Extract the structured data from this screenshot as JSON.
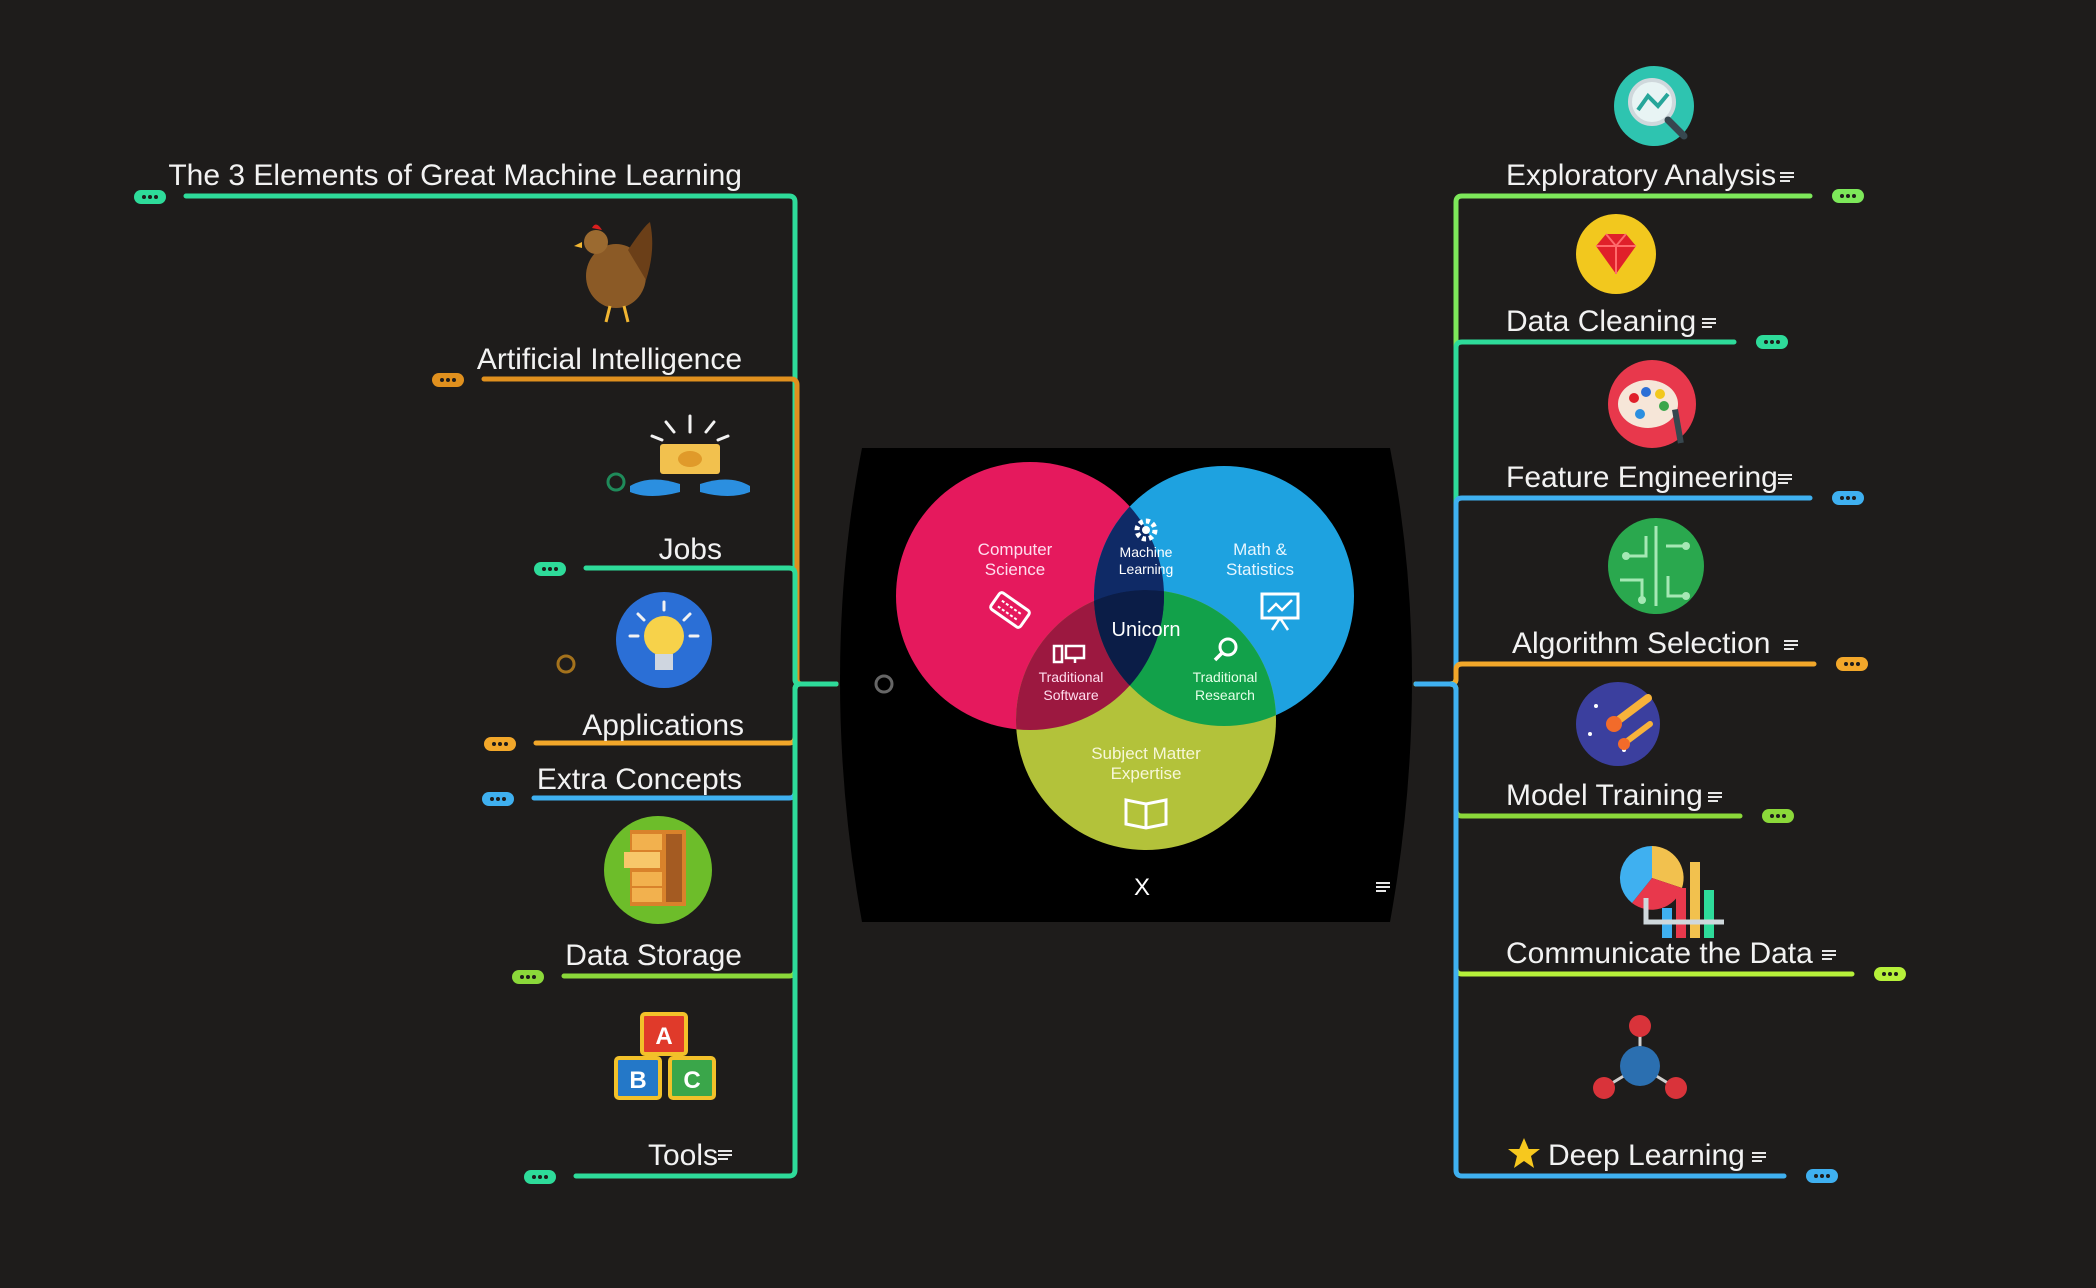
{
  "map": {
    "left_topics": [
      {
        "label": "The 3 Elements of Great Machine Learning",
        "color": "#2edb9a",
        "icon": "none"
      },
      {
        "label": "Artificial Intelligence",
        "color": "#e0901e",
        "icon": "chicken-icon"
      },
      {
        "label": "Jobs",
        "color": "#2edb9a",
        "icon": "money-hands-icon"
      },
      {
        "label": "Applications",
        "color": "#f2a72a",
        "icon": "lightbulb-icon"
      },
      {
        "label": "Extra Concepts",
        "color": "#3fb0f0",
        "icon": "none"
      },
      {
        "label": "Data Storage",
        "color": "#8bd83a",
        "icon": "filing-cabinet-icon"
      },
      {
        "label": "Tools",
        "color": "#2edb9a",
        "icon": "abc-blocks-icon"
      }
    ],
    "right_topics": [
      {
        "label": "Exploratory Analysis",
        "color": "#7de85a",
        "icon": "magnifier-chart-icon"
      },
      {
        "label": "Data Cleaning",
        "color": "#2edb9a",
        "icon": "gem-icon"
      },
      {
        "label": "Feature Engineering",
        "color": "#3fb0f0",
        "icon": "palette-icon"
      },
      {
        "label": "Algorithm Selection",
        "color": "#f2a72a",
        "icon": "circuit-icon"
      },
      {
        "label": "Model Training",
        "color": "#8bd83a",
        "icon": "comet-icon"
      },
      {
        "label": "Communicate the Data",
        "color": "#b6f03a",
        "icon": "pie-bar-chart-icon"
      },
      {
        "label": "Deep Learning",
        "color": "#3fb0f0",
        "icon": "molecule-icon",
        "prefix_icon": "star-icon"
      }
    ]
  },
  "central": {
    "close_label": "X",
    "venn": {
      "cs": "Computer Science",
      "math": "Math & Statistics",
      "sme": "Subject Matter Expertise",
      "ml": "Machine Learning",
      "ts": "Traditional Software",
      "tr": "Traditional Research",
      "unicorn": "Unicorn"
    },
    "colors": {
      "cs": "#e5195d",
      "math": "#1ea2e0",
      "sme": "#b3c23a",
      "ml": "#0f2a66",
      "ts": "#9c1840",
      "tr": "#12a14a"
    }
  }
}
